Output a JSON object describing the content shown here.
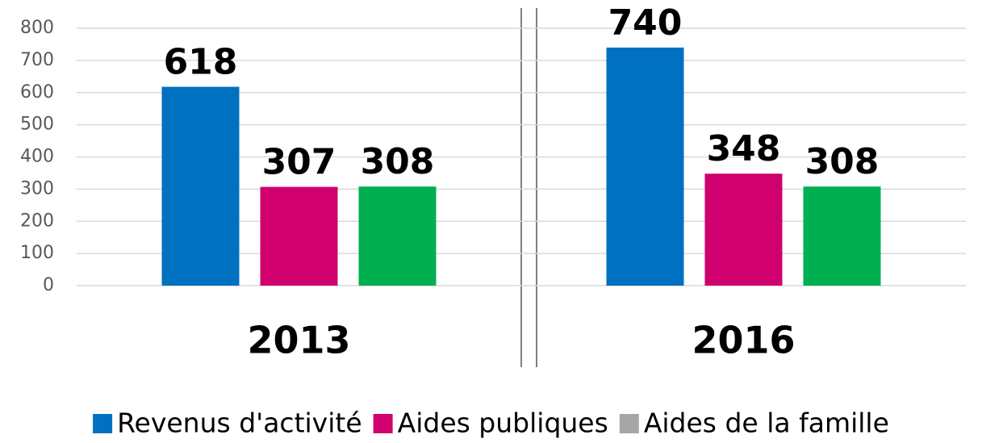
{
  "chart_data": {
    "type": "bar",
    "categories": [
      "2013",
      "2016"
    ],
    "series": [
      {
        "name": "Revenus d'activité",
        "color": "#0070c0",
        "values": [
          618,
          740
        ]
      },
      {
        "name": "Aides publiques",
        "color": "#d0006f",
        "values": [
          307,
          348
        ]
      },
      {
        "name": "Aides de la famille",
        "color": "#00b050",
        "legend_color": "#a6a6a6",
        "values": [
          308,
          308
        ]
      }
    ],
    "ylim": [
      0,
      800
    ],
    "yticks": [
      0,
      100,
      200,
      300,
      400,
      500,
      600,
      700,
      800
    ],
    "grid": true,
    "legend": "bottom"
  }
}
